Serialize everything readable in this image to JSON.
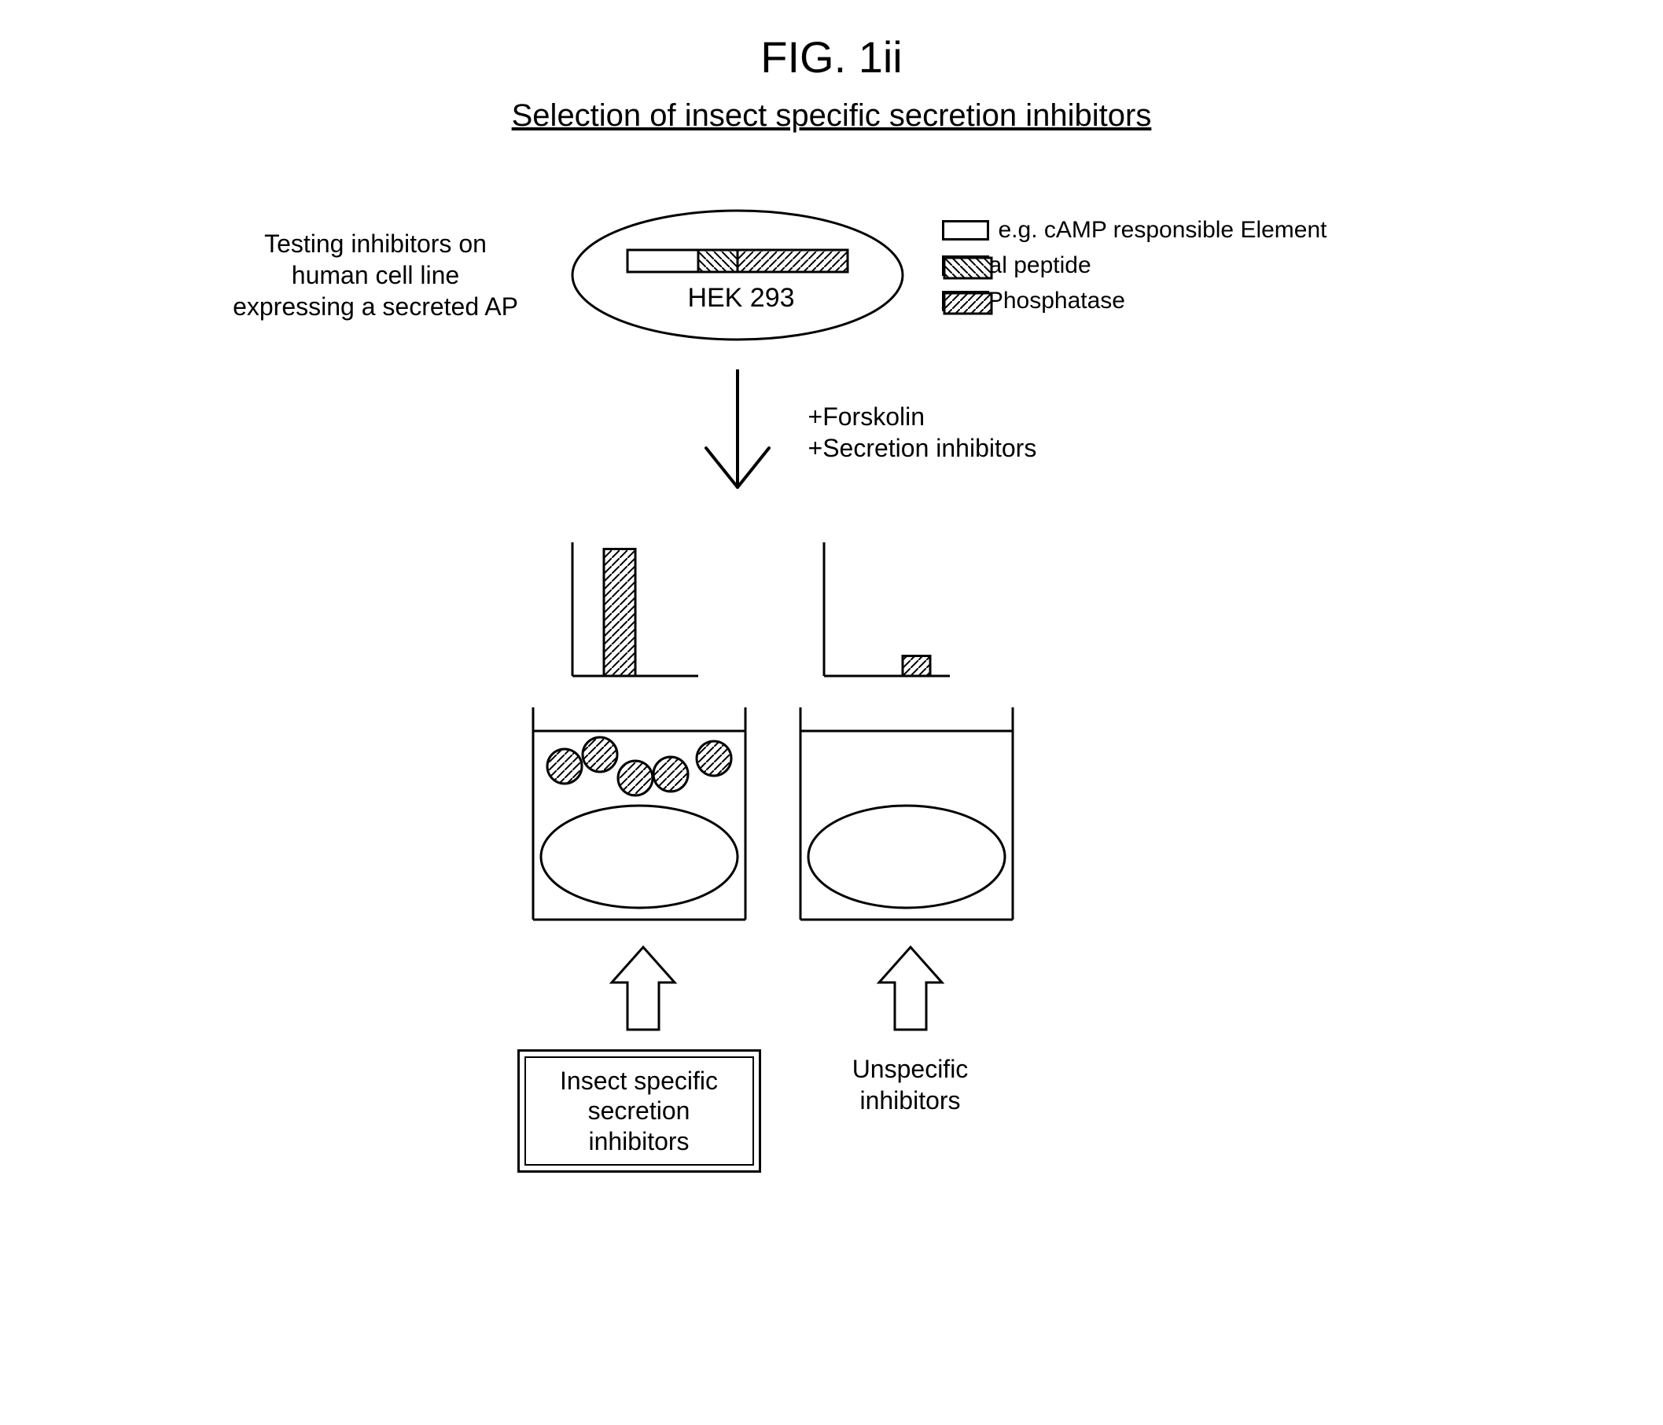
{
  "figure_label": "FIG. 1ii",
  "subtitle": "Selection of insect specific secretion inhibitors",
  "left_text_lines": [
    "Testing inhibitors on",
    "human cell line",
    "expressing a secreted AP"
  ],
  "cell_label": "HEK 293",
  "legend": {
    "items": [
      {
        "pattern": "blank",
        "label": "e.g. cAMP responsible Element"
      },
      {
        "pattern": "hatch-nw",
        "label": "Signal peptide"
      },
      {
        "pattern": "hatch-ne",
        "label": "Alk. Phosphatase"
      }
    ]
  },
  "arrow_labels": [
    "+Forskolin",
    "+Secretion inhibitors"
  ],
  "outcome_left_lines": [
    "Insect specific",
    "secretion",
    "inhibitors"
  ],
  "outcome_right_lines": [
    "Unspecific",
    "inhibitors"
  ],
  "chart_left": {
    "bar_height_rel": 0.95
  },
  "chart_right": {
    "bar_height_rel": 0.15
  },
  "colors": {
    "stroke": "#000000",
    "bg": "#ffffff"
  },
  "stroke_width": 3
}
